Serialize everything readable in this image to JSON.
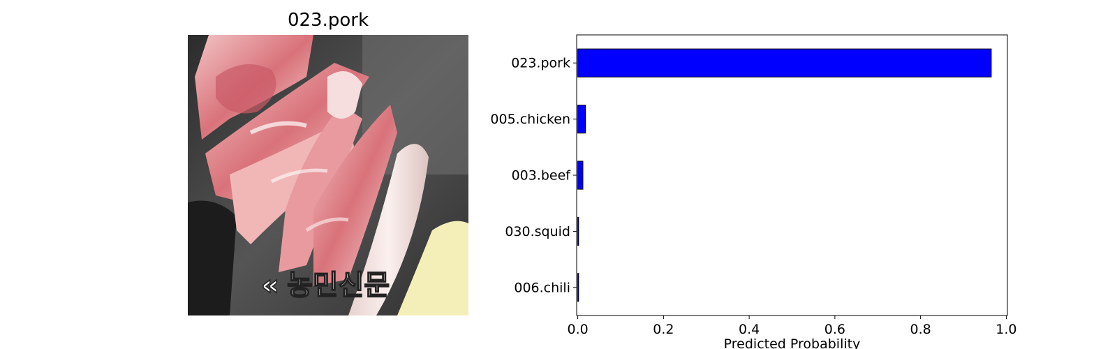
{
  "image_panel": {
    "title": "023.pork",
    "image_description": "Photo of raw sliced pork cuts and white sausages arranged on a dark grill tray",
    "watermark_text": "농민신문"
  },
  "chart_data": {
    "type": "bar",
    "orientation": "horizontal",
    "categories": [
      "023.pork",
      "005.chicken",
      "003.beef",
      "030.squid",
      "006.chili"
    ],
    "values": [
      0.965,
      0.018,
      0.012,
      0.002,
      0.002
    ],
    "title": "",
    "xlabel": "Predicted Probability",
    "ylabel": "",
    "xlim": [
      0,
      1.0
    ],
    "xticks": [
      "0.0",
      "0.2",
      "0.4",
      "0.6",
      "0.8",
      "1.0"
    ],
    "grid": false,
    "bar_color": "#0000ff",
    "edge_color": "#000000"
  }
}
